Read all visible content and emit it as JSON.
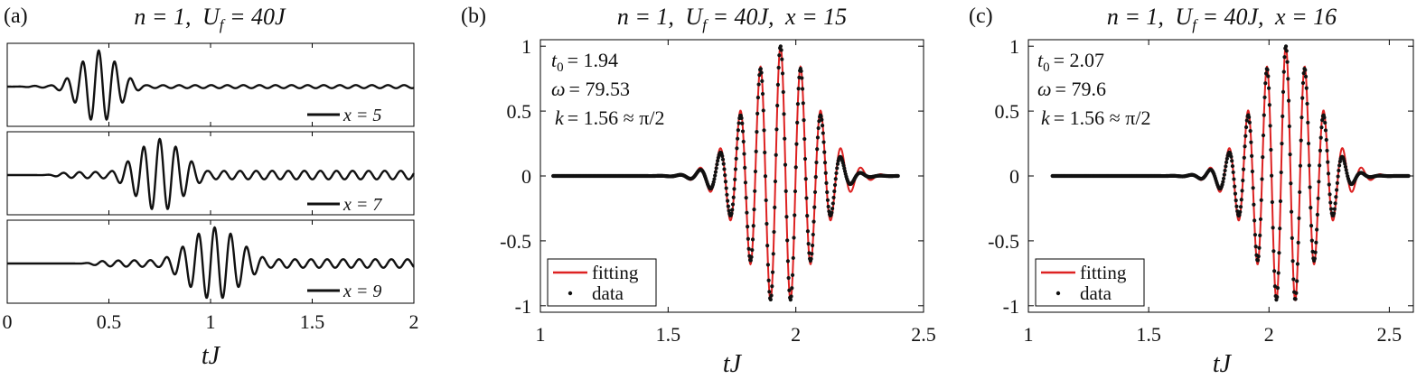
{
  "panels": [
    {
      "id": "a",
      "tag": "(a)",
      "title": {
        "n": "n = 1,",
        "u": "U",
        "sub": "f",
        "eq": " = 40J"
      },
      "xlabel": "tJ",
      "xlim": [
        0,
        2
      ],
      "xticks": [
        0,
        0.5,
        1,
        1.5,
        2
      ],
      "xtick_labels": [
        "0",
        "0.5",
        "1",
        "1.5",
        "2"
      ],
      "subplots": [
        {
          "legend": "x = 5"
        },
        {
          "legend": "x = 7"
        },
        {
          "legend": "x = 9"
        }
      ]
    },
    {
      "id": "b",
      "tag": "(b)",
      "title": {
        "n": "n = 1,",
        "u": "U",
        "sub": "f",
        "eq": " = 40J,",
        "x": "x = 15"
      },
      "xlabel": "tJ",
      "xlim": [
        1,
        2.5
      ],
      "ylim": [
        -1.05,
        1.05
      ],
      "xticks": [
        1,
        1.5,
        2,
        2.5
      ],
      "xtick_labels": [
        "1",
        "1.5",
        "2",
        "2.5"
      ],
      "yticks": [
        -1,
        -0.5,
        0,
        0.5,
        1
      ],
      "ytick_labels": [
        "-1",
        "-0.5",
        "0",
        "0.5",
        "1"
      ],
      "annotations": {
        "t0": "= 1.94",
        "omega": "= 79.53",
        "k": "= 1.56 ≈ π/2"
      },
      "legend": {
        "fit": "fitting",
        "data": "data"
      }
    },
    {
      "id": "c",
      "tag": "(c)",
      "title": {
        "n": "n = 1,",
        "u": "U",
        "sub": "f",
        "eq": " = 40J,",
        "x": "x = 16"
      },
      "xlabel": "tJ",
      "xlim": [
        1,
        2.6
      ],
      "ylim": [
        -1.05,
        1.05
      ],
      "xticks": [
        1,
        1.5,
        2,
        2.5
      ],
      "xtick_labels": [
        "1",
        "1.5",
        "2",
        "2.5"
      ],
      "yticks": [
        -1,
        -0.5,
        0,
        0.5,
        1
      ],
      "ytick_labels": [
        "-1",
        "-0.5",
        "0",
        "0.5",
        "1"
      ],
      "annotations": {
        "t0": "= 2.07",
        "omega": "= 79.6",
        "k": "= 1.56 ≈ π/2"
      },
      "legend": {
        "fit": "fitting",
        "data": "data"
      }
    }
  ],
  "chart_data": [
    {
      "type": "line",
      "panel": "a",
      "xlabel": "tJ",
      "xlim": [
        0,
        2
      ],
      "series": [
        {
          "name": "x = 5",
          "peak_t": 0.45,
          "width": 0.13,
          "amp": 0.95,
          "tail_amp": 0.16,
          "tail_period": 0.078,
          "omega": 79.5,
          "onset": 0.08
        },
        {
          "name": "x = 7",
          "peak_t": 0.75,
          "width": 0.16,
          "amp": 0.95,
          "tail_amp": 0.45,
          "tail_period": 0.078,
          "omega": 79.5,
          "onset": 0.22
        },
        {
          "name": "x = 9",
          "peak_t": 1.02,
          "width": 0.18,
          "amp": 0.95,
          "tail_amp": 0.45,
          "tail_period": 0.078,
          "omega": 79.5,
          "onset": 0.4
        }
      ]
    },
    {
      "type": "line",
      "panel": "b",
      "xlabel": "tJ",
      "xlim": [
        1,
        2.5
      ],
      "ylim": [
        -1.05,
        1.05
      ],
      "fit_params": {
        "t0": 1.94,
        "omega": 79.53,
        "k": 1.56,
        "sigma": 0.19
      },
      "series": [
        {
          "name": "fitting",
          "color": "#dd2222",
          "x_range": [
            1.05,
            2.4
          ]
        },
        {
          "name": "data",
          "color": "#111111",
          "x_range": [
            1.05,
            2.4
          ]
        }
      ]
    },
    {
      "type": "line",
      "panel": "c",
      "xlabel": "tJ",
      "xlim": [
        1,
        2.6
      ],
      "ylim": [
        -1.05,
        1.05
      ],
      "fit_params": {
        "t0": 2.07,
        "omega": 79.6,
        "k": 1.56,
        "sigma": 0.19
      },
      "series": [
        {
          "name": "fitting",
          "color": "#dd2222",
          "x_range": [
            1.1,
            2.58
          ]
        },
        {
          "name": "data",
          "color": "#111111",
          "x_range": [
            1.1,
            2.58
          ]
        }
      ]
    }
  ]
}
